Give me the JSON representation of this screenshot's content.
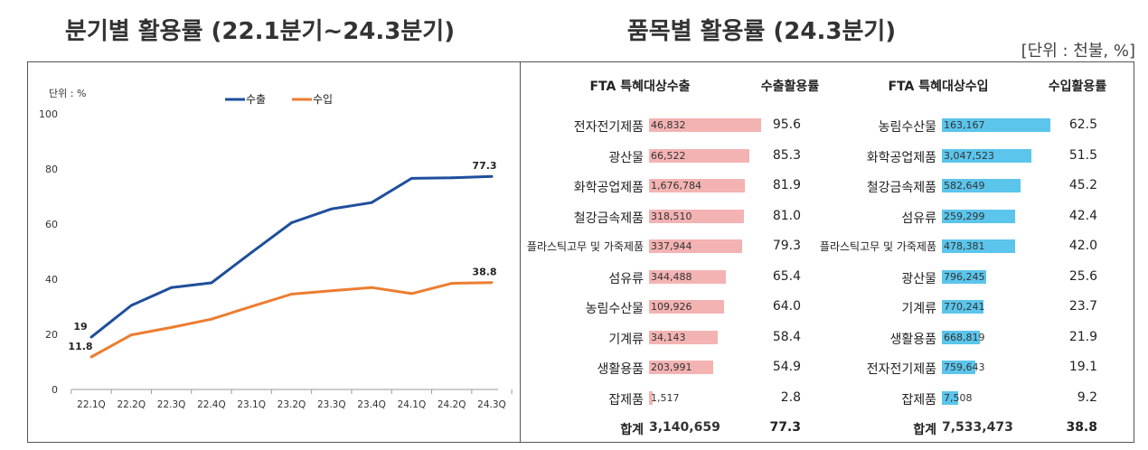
{
  "left_title": "분기별 활용률 (22.1분기~24.3분기)",
  "right_title": "품목별 활용률 (24.3분기)",
  "right_unit": "[단위 : 천불, %]",
  "colors": {
    "export": "#1f4e9c",
    "import": "#ed7d31",
    "export_bar": "#f4b3b3",
    "import_bar": "#5bc5ec"
  },
  "chart_data": [
    {
      "type": "line",
      "unit_label": "단위 : %",
      "x": [
        "22.1Q",
        "22.2Q",
        "22.3Q",
        "22.4Q",
        "23.1Q",
        "23.2Q",
        "23.3Q",
        "23.4Q",
        "24.1Q",
        "24.2Q",
        "24.3Q"
      ],
      "ylim": [
        0,
        100
      ],
      "yticks": [
        "0",
        "20",
        "40",
        "60",
        "80",
        "100"
      ],
      "series": [
        {
          "name": "수출",
          "values": [
            19,
            30.5,
            37,
            38.7,
            49.7,
            60.5,
            65.5,
            67.8,
            76.6,
            76.8,
            77.3
          ]
        },
        {
          "name": "수입",
          "values": [
            11.8,
            19.8,
            22.5,
            25.5,
            30.1,
            34.6,
            35.8,
            37,
            34.8,
            38.5,
            38.8
          ]
        }
      ],
      "data_labels": [
        {
          "series": "수출",
          "index": 0,
          "text": "19"
        },
        {
          "series": "수입",
          "index": 0,
          "text": "11.8"
        },
        {
          "series": "수출",
          "index": 10,
          "text": "77.3"
        },
        {
          "series": "수입",
          "index": 10,
          "text": "38.8"
        }
      ]
    },
    {
      "type": "bar",
      "title": "FTA 특혜대상수출",
      "rate_header": "수출활용률",
      "categories": [
        "전자전기제품",
        "광산물",
        "화학공업제품",
        "철강금속제품",
        "플라스틱고무 및 가죽제품",
        "섬유류",
        "농림수산물",
        "기계류",
        "생활용품",
        "잡제품"
      ],
      "amounts": [
        "46,832",
        "66,522",
        "1,676,784",
        "318,510",
        "337,944",
        "344,488",
        "109,926",
        "34,143",
        "203,991",
        "1,517"
      ],
      "values": [
        95.6,
        85.3,
        81.9,
        81.0,
        79.3,
        65.4,
        64.0,
        58.4,
        54.9,
        2.8
      ],
      "value_labels": [
        "95.6",
        "85.3",
        "81.9",
        "81.0",
        "79.3",
        "65.4",
        "64.0",
        "58.4",
        "54.9",
        "2.8"
      ],
      "total_label": "합계",
      "total_amount": "3,140,659",
      "total_rate": "77.3"
    },
    {
      "type": "bar",
      "title": "FTA 특혜대상수입",
      "rate_header": "수입활용률",
      "categories": [
        "농림수산물",
        "화학공업제품",
        "철강금속제품",
        "섬유류",
        "플라스틱고무 및 가죽제품",
        "광산물",
        "기계류",
        "생활용품",
        "전자전기제품",
        "잡제품"
      ],
      "amounts": [
        "163,167",
        "3,047,523",
        "582,649",
        "259,299",
        "478,381",
        "796,245",
        "770,241",
        "668,819",
        "759,643",
        "7,508"
      ],
      "values": [
        62.5,
        51.5,
        45.2,
        42.4,
        42.0,
        25.6,
        23.7,
        21.9,
        19.1,
        9.2
      ],
      "value_labels": [
        "62.5",
        "51.5",
        "45.2",
        "42.4",
        "42.0",
        "25.6",
        "23.7",
        "21.9",
        "19.1",
        "9.2"
      ],
      "total_label": "합계",
      "total_amount": "7,533,473",
      "total_rate": "38.8"
    }
  ]
}
